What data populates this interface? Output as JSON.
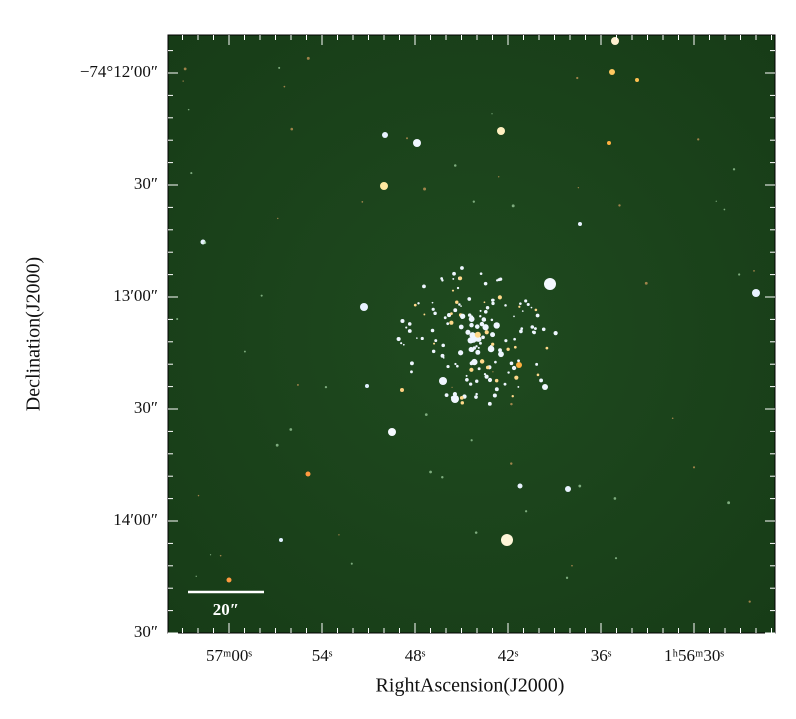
{
  "figure": {
    "x_axis_label": "RightAscension(J2000)",
    "y_axis_label": "Declination(J2000)",
    "x_tick_labels": [
      "57ᵐ00ˢ",
      "54ˢ",
      "48ˢ",
      "42ˢ",
      "36ˢ",
      "1ʰ56ᵐ30ˢ"
    ],
    "y_tick_labels": [
      "−74°12′00″",
      "30″",
      "13′00″",
      "30″",
      "14′00″",
      "30″"
    ],
    "scale_bar_label": "20″"
  }
}
